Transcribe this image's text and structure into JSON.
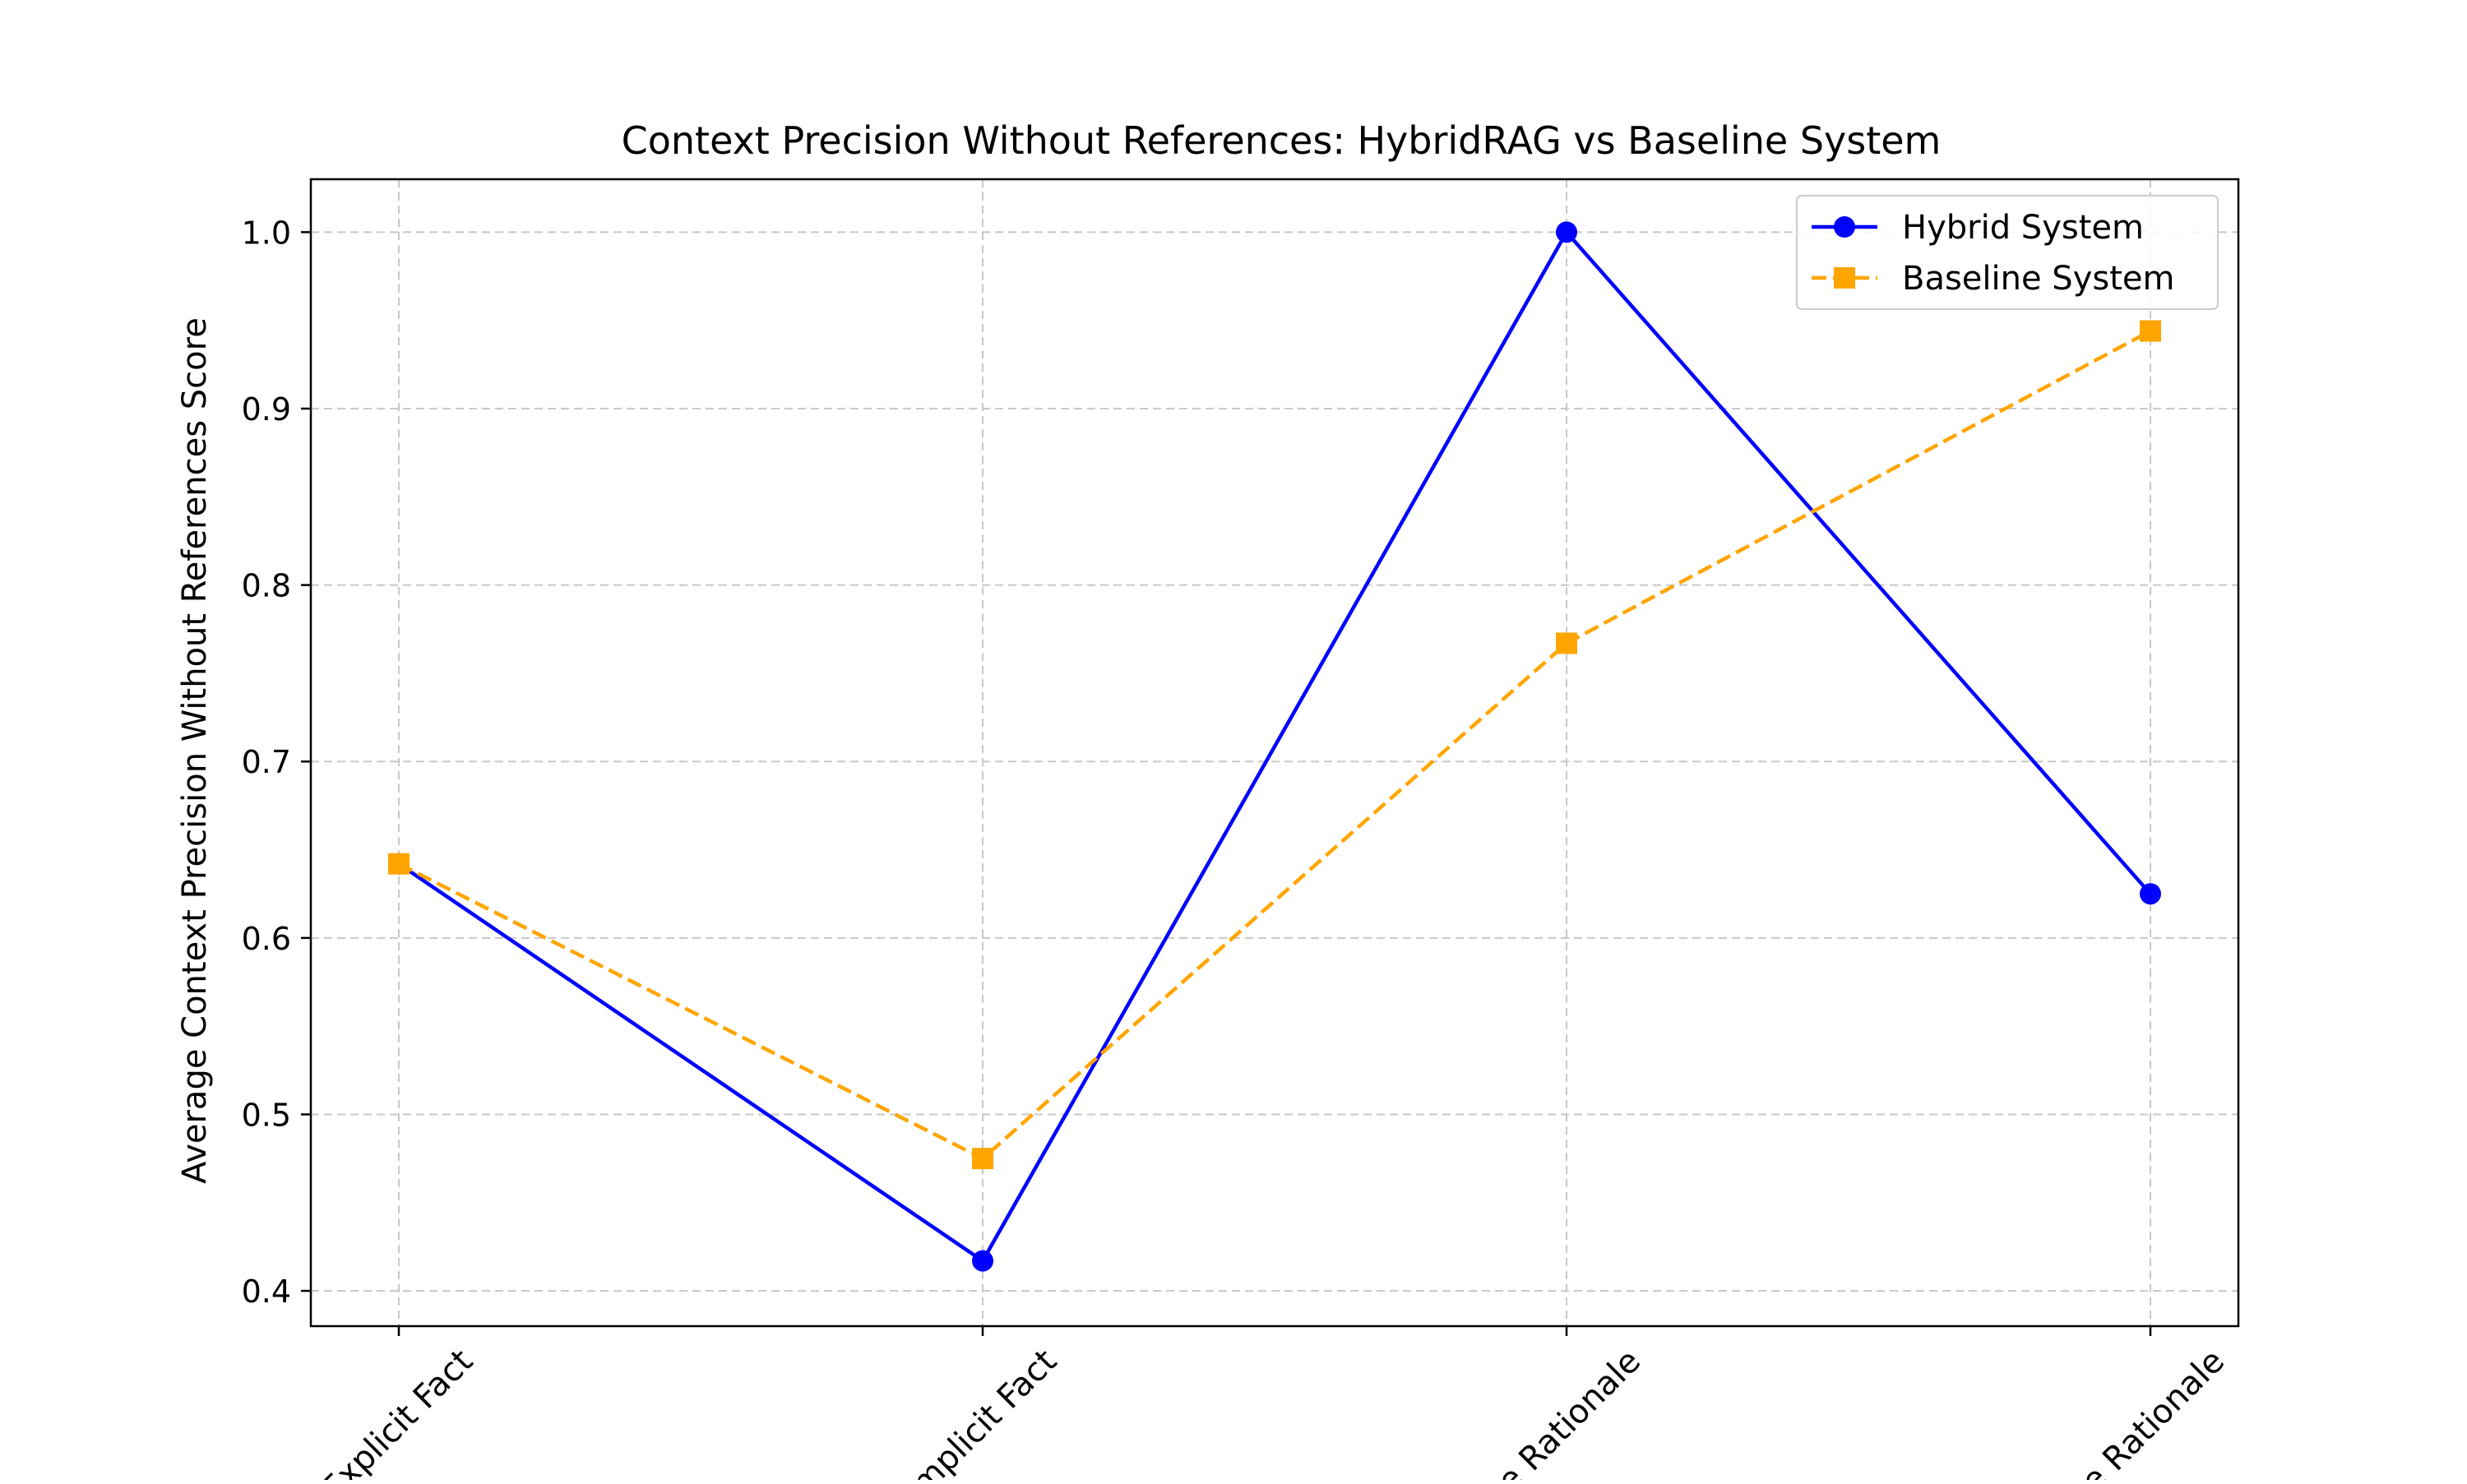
{
  "chart_data": {
    "type": "line",
    "title": "Context Precision Without References: HybridRAG vs Baseline System",
    "xlabel": "",
    "ylabel": "Average Context Precision Without References Score",
    "categories": [
      "Explicit Fact",
      "Implicit Fact",
      "Interpretable Rationale",
      "Hidden Rationale"
    ],
    "category_labels_visible": [
      "Explicit Fact",
      "mplicit Fact",
      "e Rationale",
      "e Rationale"
    ],
    "ylim": [
      0.38,
      1.03
    ],
    "yticks": [
      0.4,
      0.5,
      0.6,
      0.7,
      0.8,
      0.9,
      1.0
    ],
    "ytick_labels": [
      "0.4",
      "0.5",
      "0.6",
      "0.7",
      "0.8",
      "0.9",
      "1.0"
    ],
    "grid": true,
    "legend": "top-right",
    "series": [
      {
        "name": "Hybrid System",
        "values": [
          0.642,
          0.417,
          1.0,
          0.625
        ],
        "color": "#0000ff",
        "line_style": "solid",
        "marker": "circle"
      },
      {
        "name": "Baseline System",
        "values": [
          0.642,
          0.475,
          0.767,
          0.944
        ],
        "color": "#ffa500",
        "line_style": "dashed",
        "marker": "square"
      }
    ]
  }
}
